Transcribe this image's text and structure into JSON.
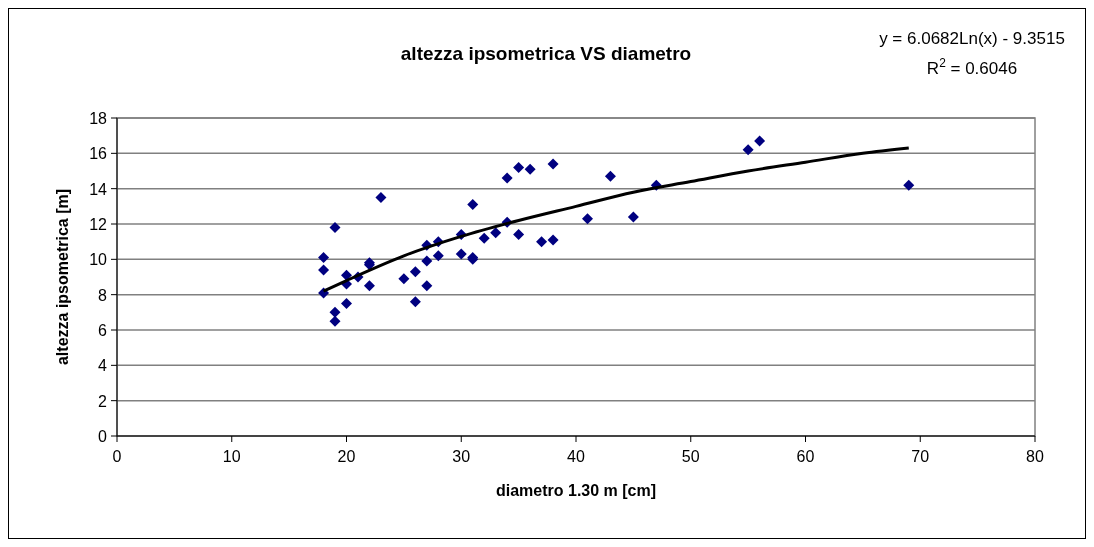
{
  "chart_data": {
    "type": "scatter",
    "title": "altezza ipsometrica VS diametro",
    "xlabel": "diametro 1.30 m [cm]",
    "ylabel": "altezza ipsometrica [m]",
    "annotations": [
      "y = 6.0682Ln(x) - 9.3515",
      "R$^{2}$ = 0.6046"
    ],
    "xlim": [
      0,
      80
    ],
    "xticks": [
      0,
      10,
      20,
      30,
      40,
      50,
      60,
      70,
      80
    ],
    "ylim": [
      0,
      18
    ],
    "yticks": [
      0,
      2,
      4,
      6,
      8,
      10,
      12,
      14,
      16,
      18
    ],
    "grid": "y",
    "series": [
      {
        "color": "#000080",
        "marker": "diamond",
        "x": [
          18,
          18,
          18,
          19,
          19,
          19,
          20,
          20,
          20,
          21,
          22,
          22,
          22,
          23,
          25,
          26,
          26,
          27,
          27,
          27,
          28,
          28,
          30,
          30,
          31,
          31,
          31,
          32,
          33,
          34,
          34,
          35,
          35,
          36,
          37,
          38,
          38,
          41,
          43,
          45,
          47,
          55,
          56,
          69
        ],
        "values": [
          10.1,
          9.4,
          8.1,
          11.8,
          7.0,
          6.5,
          9.1,
          8.6,
          7.5,
          9.0,
          9.8,
          9.7,
          8.5,
          13.5,
          8.9,
          9.3,
          7.6,
          10.8,
          9.9,
          8.5,
          11.0,
          10.2,
          11.4,
          10.3,
          13.1,
          10.1,
          10.0,
          11.2,
          11.5,
          14.6,
          12.1,
          15.2,
          11.4,
          15.1,
          11.0,
          15.4,
          11.1,
          12.3,
          14.7,
          12.4,
          14.2,
          16.2,
          16.7,
          14.2
        ]
      },
      {
        "type": "line",
        "color": "#000000",
        "x": [
          18,
          20,
          25,
          30,
          35,
          40,
          45,
          50,
          55,
          60,
          65,
          69
        ],
        "values": [
          8.2,
          8.8,
          10.2,
          11.3,
          12.2,
          13.0,
          13.8,
          14.4,
          15.0,
          15.5,
          16.0,
          16.3
        ]
      }
    ]
  }
}
